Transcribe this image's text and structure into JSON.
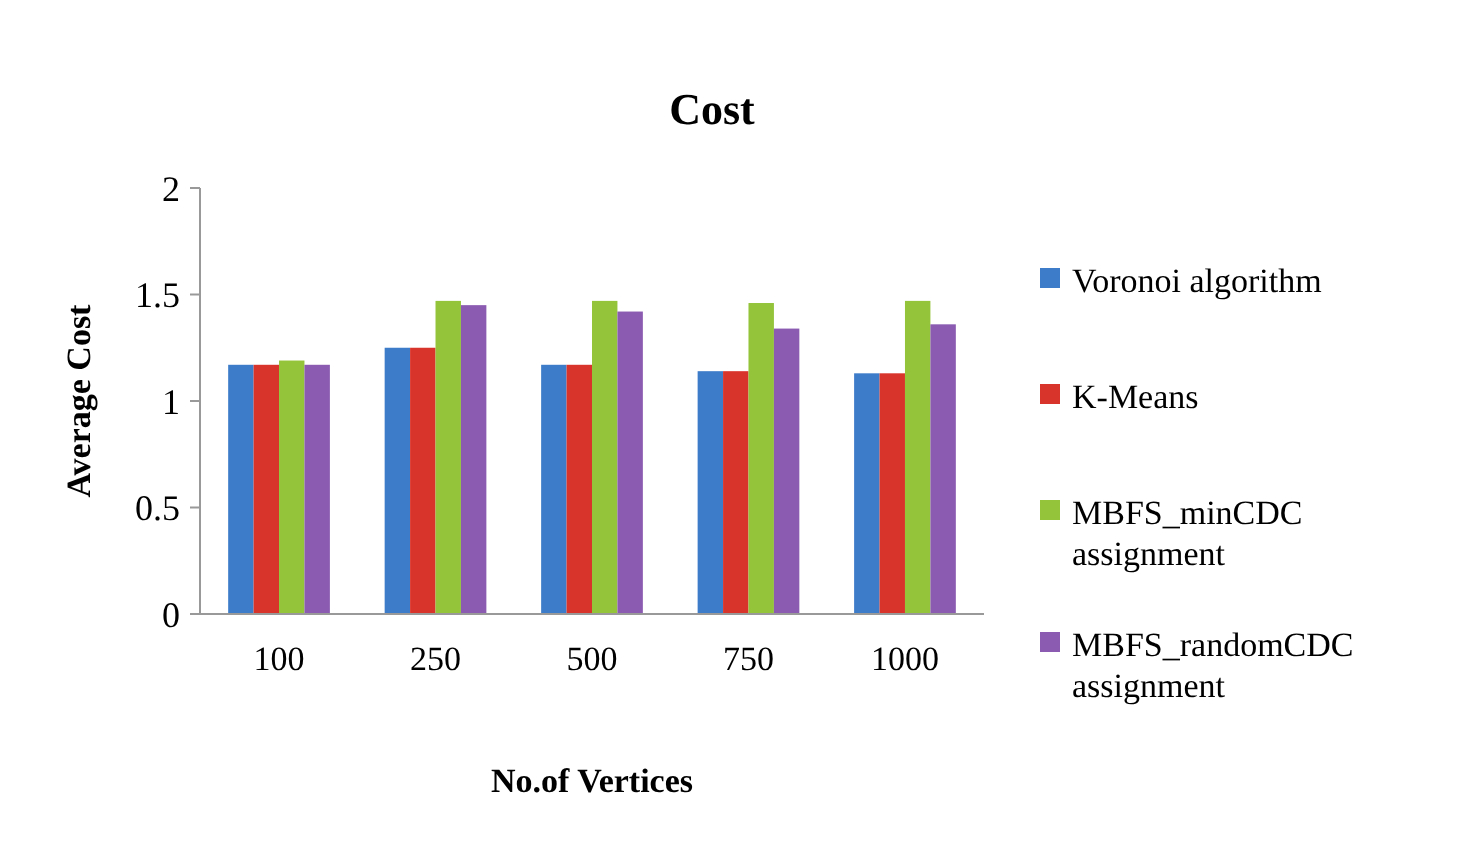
{
  "chart_data": {
    "type": "bar",
    "title": "Cost",
    "xlabel": "No.of Vertices",
    "ylabel": "Average Cost",
    "categories": [
      "100",
      "250",
      "500",
      "750",
      "1000"
    ],
    "series": [
      {
        "name": "Voronoi algorithm",
        "color": "#3d7cc9",
        "values": [
          1.17,
          1.25,
          1.17,
          1.14,
          1.13
        ]
      },
      {
        "name": "K-Means",
        "color": "#d9342b",
        "values": [
          1.17,
          1.25,
          1.17,
          1.14,
          1.13
        ]
      },
      {
        "name": "MBFS_minCDC assignment",
        "color": "#93c43a",
        "values": [
          1.19,
          1.47,
          1.47,
          1.46,
          1.47
        ]
      },
      {
        "name": "MBFS_randomCDC assignment",
        "color": "#8a5bb0",
        "values": [
          1.17,
          1.45,
          1.42,
          1.34,
          1.36
        ]
      }
    ],
    "ylim": [
      0,
      2
    ],
    "yticks": [
      0,
      0.5,
      1,
      1.5,
      2
    ],
    "grid": false,
    "legend": "right"
  }
}
